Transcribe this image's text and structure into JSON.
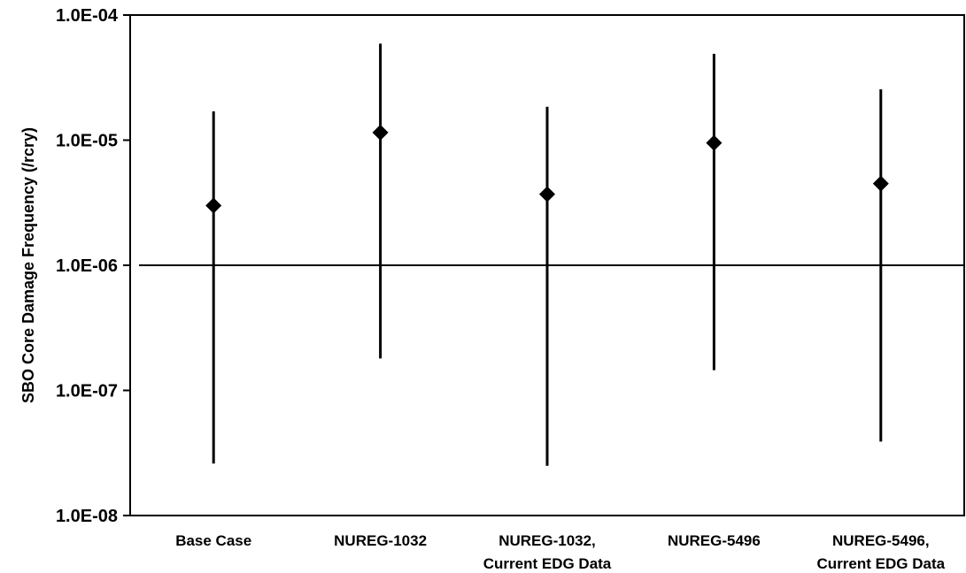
{
  "chart_data": {
    "type": "scatter",
    "title": "",
    "xlabel": "",
    "ylabel": "SBO Core Damage Frequency (/rcry)",
    "yscale": "log",
    "ylim": [
      1e-08,
      0.0001
    ],
    "yticks": [
      0.0001,
      1e-05,
      1e-06,
      1e-07,
      1e-08
    ],
    "ytick_labels": [
      "1.0E-04",
      "1.0E-05",
      "1.0E-06",
      "1.0E-07",
      "1.0E-08"
    ],
    "reference_line": 1e-06,
    "grid": false,
    "categories": [
      [
        "Base Case"
      ],
      [
        "NUREG-1032"
      ],
      [
        "NUREG-1032,",
        "Current EDG Data"
      ],
      [
        "NUREG-5496"
      ],
      [
        "NUREG-5496,",
        "Current EDG Data"
      ]
    ],
    "points": [
      {
        "mean": 3e-06,
        "upper": 1.7e-05,
        "lower": 2.6e-08
      },
      {
        "mean": 1.15e-05,
        "upper": 5.9e-05,
        "lower": 1.8e-07
      },
      {
        "mean": 3.7e-06,
        "upper": 1.85e-05,
        "lower": 2.5e-08
      },
      {
        "mean": 9.5e-06,
        "upper": 4.9e-05,
        "lower": 1.45e-07
      },
      {
        "mean": 4.5e-06,
        "upper": 2.55e-05,
        "lower": 3.9e-08
      }
    ],
    "marker": "diamond",
    "color": "#000000"
  }
}
